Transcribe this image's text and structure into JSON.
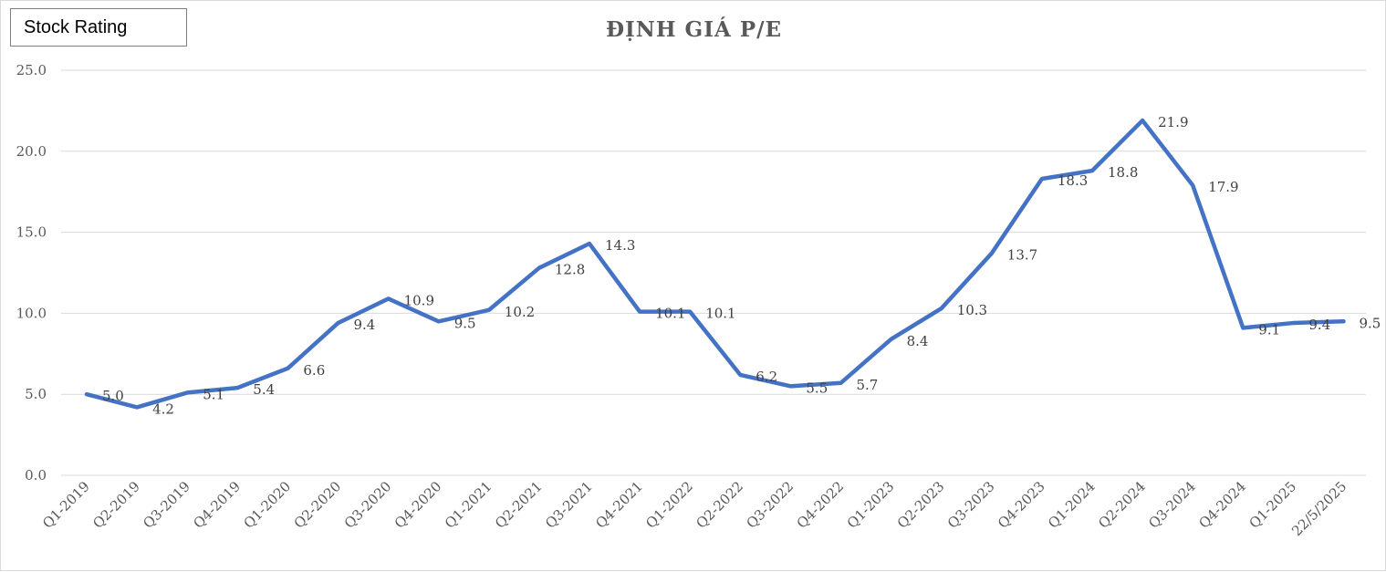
{
  "badge": {
    "label": "Stock Rating"
  },
  "chart_data": {
    "type": "line",
    "title": "ĐỊNH GIÁ P/E",
    "xlabel": "",
    "ylabel": "",
    "ylim": [
      0,
      25
    ],
    "yticks": [
      "0.0",
      "5.0",
      "10.0",
      "15.0",
      "20.0",
      "25.0"
    ],
    "grid": true,
    "legend": "none",
    "categories": [
      "Q1-2019",
      "Q2-2019",
      "Q3-2019",
      "Q4-2019",
      "Q1-2020",
      "Q2-2020",
      "Q3-2020",
      "Q4-2020",
      "Q1-2021",
      "Q2-2021",
      "Q3-2021",
      "Q4-2021",
      "Q1-2022",
      "Q2-2022",
      "Q3-2022",
      "Q4-2022",
      "Q1-2023",
      "Q2-2023",
      "Q3-2023",
      "Q4-2023",
      "Q1-2024",
      "Q2-2024",
      "Q3-2024",
      "Q4-2024",
      "Q1-2025",
      "22/5/2025"
    ],
    "series": [
      {
        "values": [
          5.0,
          4.2,
          5.1,
          5.4,
          6.6,
          9.4,
          10.9,
          9.5,
          10.2,
          12.8,
          14.3,
          10.1,
          10.1,
          6.2,
          5.5,
          5.7,
          8.4,
          10.3,
          13.7,
          18.3,
          18.8,
          21.9,
          17.9,
          9.1,
          9.4,
          9.5
        ],
        "labels": [
          "5.0",
          "4.2",
          "5.1",
          "5.4",
          "6.6",
          "9.4",
          "10.9",
          "9.5",
          "10.2",
          "12.8",
          "14.3",
          "10.1",
          "10.1",
          "6.2",
          "5.5",
          "5.7",
          "8.4",
          "10.3",
          "13.7",
          "18.3",
          "18.8",
          "21.9",
          "17.9",
          "9.1",
          "9.4",
          "9.5"
        ],
        "color": "#4472c4"
      }
    ],
    "gridColor": "#d9d9d9"
  }
}
